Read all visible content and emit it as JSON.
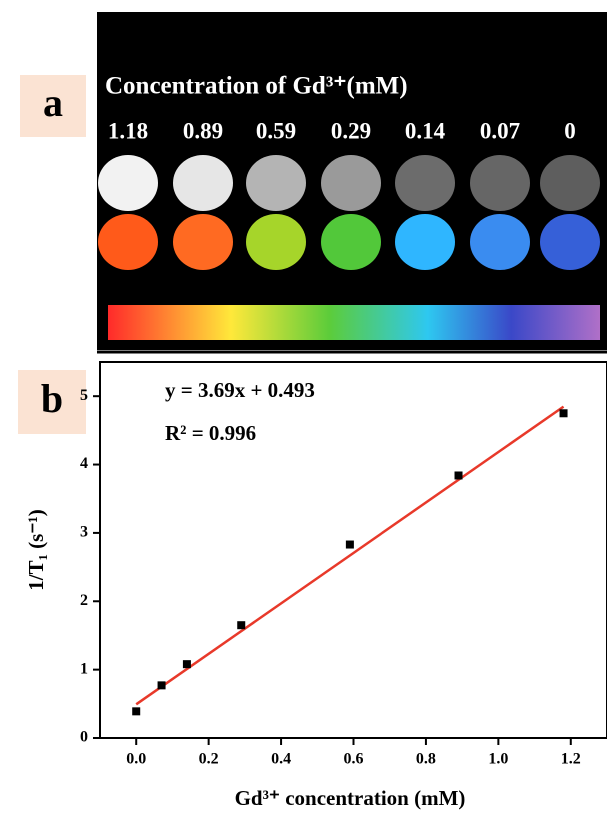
{
  "panel_a": {
    "label": "a",
    "title": "Concentration of Gd³⁺(mM)",
    "concentrations": [
      1.18,
      0.89,
      0.59,
      0.29,
      0.14,
      0.07,
      0
    ],
    "gray_colors": [
      "#f2f2f2",
      "#e6e6e6",
      "#b4b4b4",
      "#9a9a9a",
      "#6c6c6c",
      "#666666",
      "#5e5e5e"
    ],
    "map_colors": [
      "#ff5a1a",
      "#ff6a22",
      "#a6d52a",
      "#52c83a",
      "#2fb6ff",
      "#3a8cf0",
      "#3660d8"
    ]
  },
  "chart_data": {
    "type": "scatter",
    "label": "b",
    "x_label": "Gd³⁺ concentration (mM)",
    "y_label": "1/T₁ (s⁻¹)",
    "x": [
      0,
      0.07,
      0.14,
      0.29,
      0.59,
      0.89,
      1.18
    ],
    "series": [
      {
        "values": [
          0.39,
          0.77,
          1.08,
          1.65,
          2.83,
          3.84,
          4.75
        ],
        "color": "#000000"
      }
    ],
    "fit": {
      "slope": 3.69,
      "intercept": 0.493,
      "color": "#e8392a",
      "equation": "y = 3.69x + 0.493",
      "r2_label": "R² = 0.996"
    },
    "xlim": [
      -0.1,
      1.3
    ],
    "ylim": [
      0,
      5.5
    ],
    "xticks": [
      {
        "value": 0,
        "label": "0.0"
      },
      {
        "value": 0.2,
        "label": "0.2"
      },
      {
        "value": 0.4,
        "label": "0.4"
      },
      {
        "value": 0.6,
        "label": "0.6"
      },
      {
        "value": 0.8,
        "label": "0.8"
      },
      {
        "value": 1.0,
        "label": "1.0"
      },
      {
        "value": 1.2,
        "label": "1.2"
      }
    ],
    "yticks": [
      0,
      1,
      2,
      3,
      4,
      5
    ]
  }
}
